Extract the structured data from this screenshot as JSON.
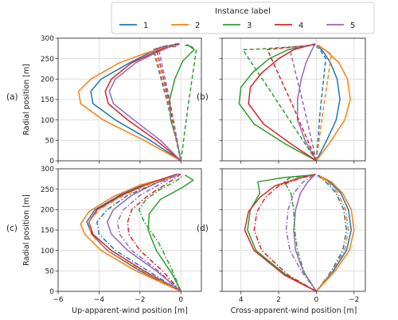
{
  "legend": {
    "title": "Instance label",
    "entries": [
      {
        "label": "1",
        "color": "#1f77b4"
      },
      {
        "label": "2",
        "color": "#ff7f0e"
      },
      {
        "label": "3",
        "color": "#2ca02c"
      },
      {
        "label": "4",
        "color": "#d62728"
      },
      {
        "label": "5",
        "color": "#9467bd"
      }
    ]
  },
  "chart_data": [
    {
      "panel": "(a)",
      "type": "line",
      "xlim": [
        -6,
        1
      ],
      "ylim": [
        0,
        300
      ],
      "x_ticks": [
        -6,
        -4,
        -2,
        0
      ],
      "x_tick_labels": [],
      "y_ticks": [
        0,
        50,
        100,
        150,
        200,
        250,
        300
      ],
      "y_tick_labels": [
        "0",
        "50",
        "100",
        "150",
        "200",
        "250",
        "300"
      ],
      "xlabel": "",
      "ylabel": "Radial position [m]",
      "grid": true,
      "series": [
        {
          "name": "1",
          "style": "solid",
          "x": [
            0,
            -1.5,
            -3.2,
            -4.3,
            -4.4,
            -3.9,
            -2.5,
            -1.5,
            -0.3
          ],
          "y": [
            0,
            50,
            100,
            140,
            170,
            200,
            240,
            265,
            285
          ]
        },
        {
          "name": "2",
          "style": "solid",
          "x": [
            0,
            -1.8,
            -3.8,
            -4.9,
            -5.0,
            -4.4,
            -3.0,
            -1.8,
            -0.4
          ],
          "y": [
            0,
            50,
            100,
            140,
            170,
            200,
            240,
            262,
            284
          ]
        },
        {
          "name": "3",
          "style": "solid",
          "x": [
            0,
            -0.2,
            -0.5,
            -0.55,
            -0.3,
            0.1,
            0.65,
            0.3
          ],
          "y": [
            0,
            50,
            100,
            150,
            200,
            245,
            272,
            285
          ]
        },
        {
          "name": "4",
          "style": "solid",
          "x": [
            0,
            -1.2,
            -2.6,
            -3.55,
            -3.7,
            -3.4,
            -2.4,
            -1.3,
            -0.2
          ],
          "y": [
            0,
            50,
            100,
            140,
            170,
            200,
            240,
            265,
            287
          ]
        },
        {
          "name": "5",
          "style": "solid",
          "x": [
            0,
            -1.0,
            -2.3,
            -3.3,
            -3.5,
            -3.2,
            -2.2,
            -1.2,
            -0.1
          ],
          "y": [
            0,
            50,
            100,
            140,
            170,
            200,
            240,
            265,
            288
          ]
        },
        {
          "name": "1",
          "style": "dashed",
          "x": [
            0,
            -0.7,
            -1.35,
            -1.0,
            -0.2
          ],
          "y": [
            0,
            150,
            272,
            278,
            280
          ]
        },
        {
          "name": "2",
          "style": "dashed",
          "x": [
            0,
            -0.65,
            -1.3,
            -0.9,
            -0.25
          ],
          "y": [
            0,
            150,
            271,
            277,
            279
          ]
        },
        {
          "name": "3",
          "style": "dashed",
          "x": [
            0,
            0.35,
            0.75,
            0.5,
            0.2
          ],
          "y": [
            0,
            135,
            270,
            280,
            283
          ]
        },
        {
          "name": "4",
          "style": "dashed",
          "x": [
            0,
            -0.6,
            -1.2,
            -0.8,
            -0.1
          ],
          "y": [
            0,
            150,
            274,
            280,
            284
          ]
        },
        {
          "name": "5",
          "style": "dashed",
          "x": [
            0,
            -0.55,
            -1.1,
            -0.7,
            -0.05
          ],
          "y": [
            0,
            150,
            276,
            282,
            286
          ]
        }
      ]
    },
    {
      "panel": "(b)",
      "type": "line",
      "xlim": [
        5,
        -2.6
      ],
      "ylim": [
        0,
        300
      ],
      "x_ticks": [
        4,
        2,
        0,
        -2
      ],
      "x_tick_labels": [],
      "y_ticks": [
        0,
        50,
        100,
        150,
        200,
        250,
        300
      ],
      "y_tick_labels": [],
      "xlabel": "",
      "ylabel": "",
      "grid": true,
      "series": [
        {
          "name": "1",
          "style": "solid",
          "x": [
            0,
            -0.55,
            -1.05,
            -1.25,
            -1.1,
            -0.75,
            -0.35,
            -0.05
          ],
          "y": [
            0,
            50,
            100,
            150,
            200,
            240,
            268,
            283
          ]
        },
        {
          "name": "2",
          "style": "solid",
          "x": [
            0,
            -0.8,
            -1.5,
            -1.8,
            -1.65,
            -1.2,
            -0.55,
            -0.1
          ],
          "y": [
            0,
            50,
            100,
            150,
            200,
            240,
            268,
            283
          ]
        },
        {
          "name": "3",
          "style": "solid",
          "x": [
            0,
            1.6,
            3.3,
            4.1,
            4.0,
            3.4,
            2.5,
            1.5,
            0.15
          ],
          "y": [
            0,
            40,
            90,
            140,
            180,
            215,
            250,
            272,
            285
          ]
        },
        {
          "name": "4",
          "style": "solid",
          "x": [
            0,
            1.3,
            2.8,
            3.6,
            3.5,
            2.9,
            2.0,
            1.2,
            0.1
          ],
          "y": [
            0,
            40,
            90,
            140,
            180,
            215,
            250,
            272,
            286
          ]
        },
        {
          "name": "5",
          "style": "solid",
          "x": [
            0,
            0.6,
            1.0,
            1.0,
            0.8,
            0.55,
            0.25,
            0.05
          ],
          "y": [
            0,
            50,
            100,
            150,
            200,
            240,
            270,
            287
          ]
        },
        {
          "name": "1",
          "style": "dashed",
          "x": [
            0,
            -0.2,
            -0.5,
            -0.2,
            0
          ],
          "y": [
            0,
            120,
            250,
            272,
            280
          ]
        },
        {
          "name": "2",
          "style": "dashed",
          "x": [
            0,
            -0.35,
            -0.8,
            -0.45,
            -0.05
          ],
          "y": [
            0,
            120,
            260,
            272,
            279
          ]
        },
        {
          "name": "3",
          "style": "dashed",
          "x": [
            0,
            2.0,
            3.9,
            3.2,
            0.2
          ],
          "y": [
            0,
            140,
            272,
            273,
            282
          ]
        },
        {
          "name": "4",
          "style": "dashed",
          "x": [
            0,
            1.3,
            2.6,
            1.8,
            0.05
          ],
          "y": [
            0,
            140,
            272,
            276,
            284
          ]
        },
        {
          "name": "5",
          "style": "dashed",
          "x": [
            0,
            0.7,
            1.4,
            0.9,
            0.05
          ],
          "y": [
            0,
            140,
            272,
            278,
            286
          ]
        }
      ]
    },
    {
      "panel": "(c)",
      "type": "line",
      "xlim": [
        -6,
        1
      ],
      "ylim": [
        0,
        300
      ],
      "x_ticks": [
        -6,
        -4,
        -2,
        0
      ],
      "x_tick_labels": [
        "−6",
        "−4",
        "−2",
        "0"
      ],
      "y_ticks": [
        0,
        50,
        100,
        150,
        200,
        250,
        300
      ],
      "y_tick_labels": [
        "0",
        "50",
        "100",
        "150",
        "200",
        "250",
        "300"
      ],
      "xlabel": "Up-apparent-wind position [m]",
      "ylabel": "Radial position [m]",
      "grid": true,
      "series": [
        {
          "name": "1",
          "style": "solid",
          "x": [
            0,
            -2.0,
            -3.6,
            -4.35,
            -4.6,
            -4.2,
            -3.0,
            -1.8,
            -0.3
          ],
          "y": [
            0,
            50,
            100,
            140,
            170,
            200,
            235,
            262,
            283
          ]
        },
        {
          "name": "2",
          "style": "solid",
          "x": [
            0,
            -2.2,
            -3.9,
            -4.7,
            -4.9,
            -4.5,
            -3.3,
            -2.0,
            -0.3
          ],
          "y": [
            0,
            50,
            100,
            140,
            165,
            195,
            232,
            260,
            283
          ]
        },
        {
          "name": "3",
          "style": "solid",
          "x": [
            0,
            -0.4,
            -1.2,
            -1.6,
            -1.55,
            -1.0,
            0.1,
            0.6,
            0.2
          ],
          "y": [
            0,
            40,
            100,
            150,
            190,
            225,
            255,
            272,
            285
          ]
        },
        {
          "name": "4",
          "style": "solid",
          "x": [
            0,
            -1.8,
            -3.4,
            -4.3,
            -4.5,
            -4.1,
            -2.9,
            -1.6,
            -0.2
          ],
          "y": [
            0,
            50,
            100,
            140,
            170,
            200,
            235,
            263,
            287
          ]
        },
        {
          "name": "5",
          "style": "solid",
          "x": [
            0,
            -1.2,
            -2.6,
            -3.4,
            -3.6,
            -3.3,
            -2.4,
            -1.3,
            -0.1
          ],
          "y": [
            0,
            50,
            100,
            140,
            170,
            200,
            235,
            263,
            288
          ]
        },
        {
          "name": "1",
          "style": "dashdot",
          "x": [
            0,
            -1.6,
            -3.2,
            -4.0,
            -4.1,
            -3.6,
            -2.6,
            -1.3,
            -0.2
          ],
          "y": [
            0,
            50,
            100,
            140,
            170,
            200,
            235,
            263,
            284
          ]
        },
        {
          "name": "2",
          "style": "dashdot",
          "x": [
            0,
            -1.9,
            -3.6,
            -4.4,
            -4.5,
            -4.0,
            -2.8,
            -1.5,
            -0.2
          ],
          "y": [
            0,
            50,
            100,
            140,
            170,
            200,
            235,
            263,
            284
          ]
        },
        {
          "name": "3",
          "style": "dashdot",
          "x": [
            0,
            -0.5,
            -1.1,
            -1.8,
            -2.05,
            -1.7,
            -1.0,
            -0.3,
            0.1
          ],
          "y": [
            0,
            60,
            120,
            170,
            200,
            225,
            250,
            268,
            282
          ]
        },
        {
          "name": "4",
          "style": "dashdot",
          "x": [
            0,
            -0.9,
            -2.0,
            -2.55,
            -2.6,
            -2.4,
            -1.6,
            -0.7,
            0
          ],
          "y": [
            0,
            50,
            100,
            140,
            170,
            200,
            235,
            263,
            287
          ]
        },
        {
          "name": "5",
          "style": "dashdot",
          "x": [
            0,
            -1.1,
            -2.4,
            -3.0,
            -3.1,
            -2.8,
            -2.0,
            -1.0,
            -0.05
          ],
          "y": [
            0,
            50,
            100,
            140,
            170,
            200,
            235,
            263,
            288
          ]
        }
      ]
    },
    {
      "panel": "(d)",
      "type": "line",
      "xlim": [
        5,
        -2.6
      ],
      "ylim": [
        0,
        300
      ],
      "x_ticks": [
        4,
        2,
        0,
        -2
      ],
      "x_tick_labels": [
        "4",
        "2",
        "0",
        "−2"
      ],
      "y_ticks": [
        0,
        50,
        100,
        150,
        200,
        250,
        300
      ],
      "y_tick_labels": [],
      "xlabel": "Cross-apparent-wind position [m]",
      "ylabel": "",
      "grid": true,
      "series": [
        {
          "name": "1",
          "style": "solid",
          "x": [
            0,
            -0.9,
            -1.6,
            -1.85,
            -1.7,
            -1.3,
            -0.7,
            -0.1
          ],
          "y": [
            0,
            50,
            100,
            150,
            200,
            240,
            268,
            284
          ]
        },
        {
          "name": "2",
          "style": "solid",
          "x": [
            0,
            -1.0,
            -1.75,
            -2.0,
            -1.85,
            -1.4,
            -0.8,
            -0.15
          ],
          "y": [
            0,
            50,
            100,
            150,
            200,
            240,
            268,
            283
          ]
        },
        {
          "name": "3",
          "style": "solid",
          "x": [
            0,
            1.6,
            3.2,
            3.65,
            3.5,
            3.0,
            3.1,
            1.8,
            0.15
          ],
          "y": [
            0,
            40,
            100,
            150,
            200,
            240,
            268,
            278,
            285
          ]
        },
        {
          "name": "4",
          "style": "solid",
          "x": [
            0,
            1.7,
            3.3,
            3.8,
            3.6,
            3.0,
            2.2,
            1.0,
            0.1
          ],
          "y": [
            0,
            40,
            100,
            150,
            195,
            230,
            258,
            276,
            286
          ]
        },
        {
          "name": "5",
          "style": "solid",
          "x": [
            0,
            0.7,
            1.1,
            1.2,
            1.1,
            0.85,
            0.45,
            0.05
          ],
          "y": [
            0,
            50,
            100,
            150,
            200,
            240,
            268,
            287
          ]
        },
        {
          "name": "1",
          "style": "dashdot",
          "x": [
            0,
            -0.8,
            -1.4,
            -1.6,
            -1.45,
            -1.05,
            -0.5,
            -0.05
          ],
          "y": [
            0,
            50,
            100,
            150,
            200,
            240,
            268,
            284
          ]
        },
        {
          "name": "2",
          "style": "dashdot",
          "x": [
            0,
            -0.85,
            -1.5,
            -1.7,
            -1.55,
            -1.15,
            -0.6,
            -0.1
          ],
          "y": [
            0,
            50,
            100,
            150,
            200,
            240,
            268,
            283
          ]
        },
        {
          "name": "3",
          "style": "dashdot",
          "x": [
            0,
            0.6,
            1.0,
            1.15,
            1.2,
            1.35,
            1.7,
            1.4,
            0.1
          ],
          "y": [
            0,
            40,
            100,
            150,
            200,
            240,
            268,
            278,
            285
          ]
        },
        {
          "name": "4",
          "style": "dashdot",
          "x": [
            0,
            1.5,
            2.9,
            3.3,
            3.15,
            2.7,
            2.0,
            0.9,
            0.05
          ],
          "y": [
            0,
            40,
            100,
            150,
            195,
            230,
            258,
            276,
            286
          ]
        },
        {
          "name": "5",
          "style": "dashdot",
          "x": [
            0,
            0.8,
            1.4,
            1.6,
            1.5,
            1.2,
            0.7,
            0.05
          ],
          "y": [
            0,
            50,
            100,
            150,
            200,
            240,
            268,
            287
          ]
        }
      ]
    }
  ]
}
